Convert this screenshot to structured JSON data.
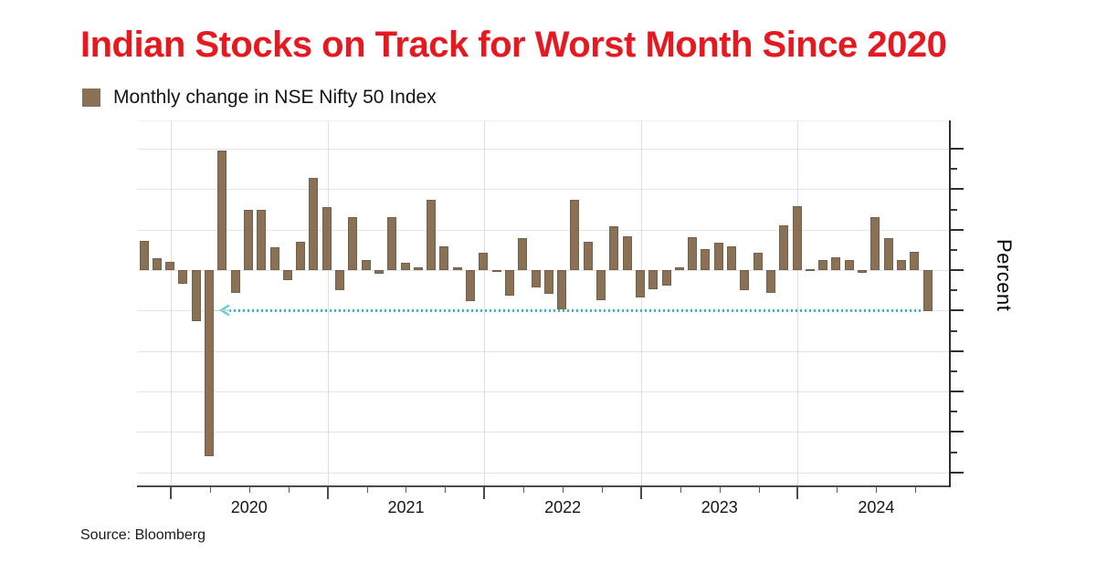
{
  "title": {
    "text": "Indian Stocks on Track for Worst Month Since 2020",
    "color": "#e5191f"
  },
  "legend": {
    "label": "Monthly change in NSE Nifty 50 Index",
    "swatch_color": "#8a7156"
  },
  "y_axis_label": "Percent",
  "source": "Source: Bloomberg",
  "chart_data": {
    "type": "bar",
    "title": "Indian Stocks on Track for Worst Month Since 2020",
    "subtitle": "Monthly change in NSE Nifty 50 Index",
    "ylabel": "Percent",
    "xlabel": "",
    "grid": true,
    "legend_position": "top-left",
    "ylim": [
      -26.7,
      18.4
    ],
    "y_major_ticks": [
      15,
      10,
      5,
      0,
      -5,
      -10,
      -15,
      -20,
      -25
    ],
    "x_year_labels": [
      "2020",
      "2021",
      "2022",
      "2023",
      "2024"
    ],
    "x": [
      "Oct 2019",
      "Nov 2019",
      "Dec 2019",
      "Jan 2020",
      "Feb 2020",
      "Mar 2020",
      "Apr 2020",
      "May 2020",
      "Jun 2020",
      "Jul 2020",
      "Aug 2020",
      "Sep 2020",
      "Oct 2020",
      "Nov 2020",
      "Dec 2020",
      "Jan 2021",
      "Feb 2021",
      "Mar 2021",
      "Apr 2021",
      "May 2021",
      "Jun 2021",
      "Jul 2021",
      "Aug 2021",
      "Sep 2021",
      "Oct 2021",
      "Nov 2021",
      "Dec 2021",
      "Jan 2022",
      "Feb 2022",
      "Mar 2022",
      "Apr 2022",
      "May 2022",
      "Jun 2022",
      "Jul 2022",
      "Aug 2022",
      "Sep 2022",
      "Oct 2022",
      "Nov 2022",
      "Dec 2022",
      "Jan 2023",
      "Feb 2023",
      "Mar 2023",
      "Apr 2023",
      "May 2023",
      "Jun 2023",
      "Jul 2023",
      "Aug 2023",
      "Sep 2023",
      "Oct 2023",
      "Nov 2023",
      "Dec 2023",
      "Jan 2024",
      "Feb 2024",
      "Mar 2024",
      "Apr 2024",
      "May 2024",
      "Jun 2024",
      "Jul 2024",
      "Aug 2024",
      "Sep 2024",
      "Oct 2024"
    ],
    "values": [
      3.6,
      1.5,
      1.0,
      -1.7,
      -6.3,
      -23.0,
      14.8,
      -2.8,
      7.5,
      7.5,
      2.8,
      -1.2,
      3.5,
      11.4,
      7.8,
      -2.5,
      6.6,
      1.2,
      -0.4,
      6.5,
      0.9,
      0.3,
      8.7,
      2.9,
      0.4,
      -3.8,
      2.2,
      -0.1,
      -3.1,
      4.0,
      -2.1,
      -2.9,
      -4.8,
      8.7,
      3.5,
      -3.7,
      5.4,
      4.2,
      -3.4,
      -2.4,
      -1.9,
      0.3,
      4.1,
      2.6,
      3.4,
      2.9,
      -2.5,
      2.1,
      -2.8,
      5.5,
      7.9,
      0.1,
      1.2,
      1.6,
      1.2,
      -0.3,
      6.5,
      3.9,
      1.2,
      2.3,
      -5.1
    ],
    "bar_color": "#8a7156",
    "annotation": {
      "type": "horizontal-dashed-arrow",
      "y_value": -5,
      "points_from": "Oct 2024",
      "points_to": "Mar 2020",
      "color": "#41b3c6",
      "meaning": "Level of the October 2024 drop traced back toward March 2020"
    }
  }
}
